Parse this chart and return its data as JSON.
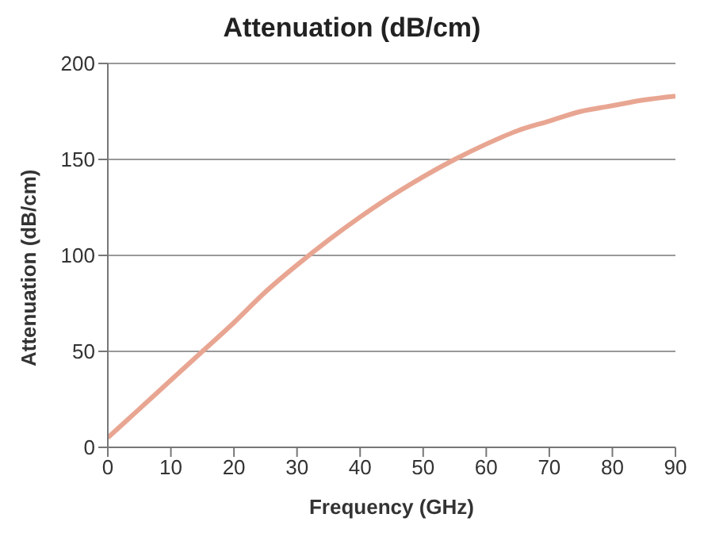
{
  "chart_data": {
    "type": "line",
    "title": "Attenuation (dB/cm)",
    "xlabel": "Frequency (GHz)",
    "ylabel": "Attenuation (dB/cm)",
    "x": [
      0,
      5,
      10,
      15,
      20,
      25,
      30,
      35,
      40,
      45,
      50,
      55,
      60,
      65,
      70,
      75,
      80,
      85,
      90
    ],
    "series": [
      {
        "color": "#e8a692",
        "values": [
          5,
          20,
          35,
          50,
          65,
          81,
          95,
          108,
          120,
          131,
          141,
          150,
          158,
          165,
          170,
          175,
          178,
          181,
          183
        ]
      }
    ],
    "xlim": [
      0,
      90
    ],
    "xticks": [
      0,
      10,
      20,
      30,
      40,
      50,
      60,
      70,
      80,
      90
    ],
    "ylim": [
      0,
      200
    ],
    "yticks": [
      0,
      50,
      100,
      150,
      200
    ],
    "grid": "y",
    "legend": false,
    "marker": "none",
    "line_style": "solid"
  }
}
